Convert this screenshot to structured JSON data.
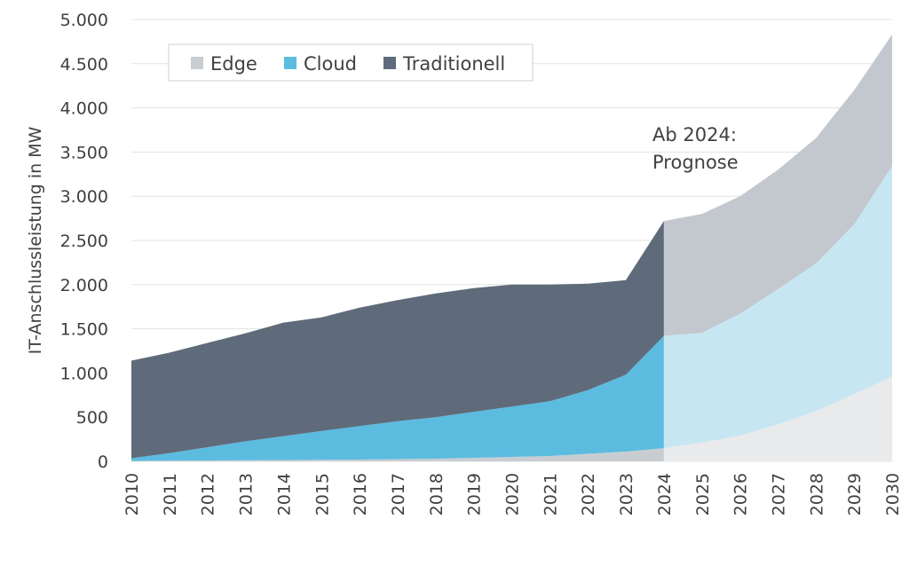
{
  "chart_data": {
    "type": "area",
    "stacked": true,
    "ylabel": "IT-Anschlussleistung in MW",
    "xlabel": "",
    "ylim": [
      0,
      5000
    ],
    "yticks": [
      0,
      500,
      1000,
      1500,
      2000,
      2500,
      3000,
      3500,
      4000,
      4500,
      5000
    ],
    "ytick_labels": [
      "0",
      "500",
      "1.000",
      "1.500",
      "2.000",
      "2.500",
      "3.000",
      "3.500",
      "4.000",
      "4.500",
      "5.000"
    ],
    "categories": [
      "2010",
      "2011",
      "2012",
      "2013",
      "2014",
      "2015",
      "2016",
      "2017",
      "2018",
      "2019",
      "2020",
      "2021",
      "2022",
      "2023",
      "2024",
      "2025",
      "2026",
      "2027",
      "2028",
      "2029",
      "2030"
    ],
    "forecast_from": "2024",
    "annotation": [
      "Ab 2024:",
      "Prognose"
    ],
    "grid": true,
    "legend_position": "top-left",
    "series": [
      {
        "name": "Edge",
        "color": "#c8cdd2",
        "forecast_color": "#e9eaec",
        "values": [
          5,
          8,
          10,
          12,
          15,
          18,
          20,
          25,
          30,
          40,
          50,
          60,
          85,
          110,
          150,
          215,
          290,
          420,
          570,
          760,
          960
        ]
      },
      {
        "name": "Cloud",
        "color": "#5bbce0",
        "forecast_color": "#c6e6f2",
        "values": [
          30,
          85,
          150,
          215,
          270,
          325,
          380,
          430,
          470,
          520,
          570,
          620,
          720,
          870,
          1270,
          1240,
          1380,
          1530,
          1670,
          1920,
          2380
        ]
      },
      {
        "name": "Traditionell",
        "color": "#5f6b7a",
        "forecast_color": "#c3c8ce",
        "values": [
          1105,
          1137,
          1180,
          1223,
          1285,
          1287,
          1340,
          1370,
          1400,
          1400,
          1380,
          1320,
          1205,
          1070,
          1300,
          1345,
          1330,
          1350,
          1420,
          1520,
          1490
        ]
      }
    ]
  }
}
